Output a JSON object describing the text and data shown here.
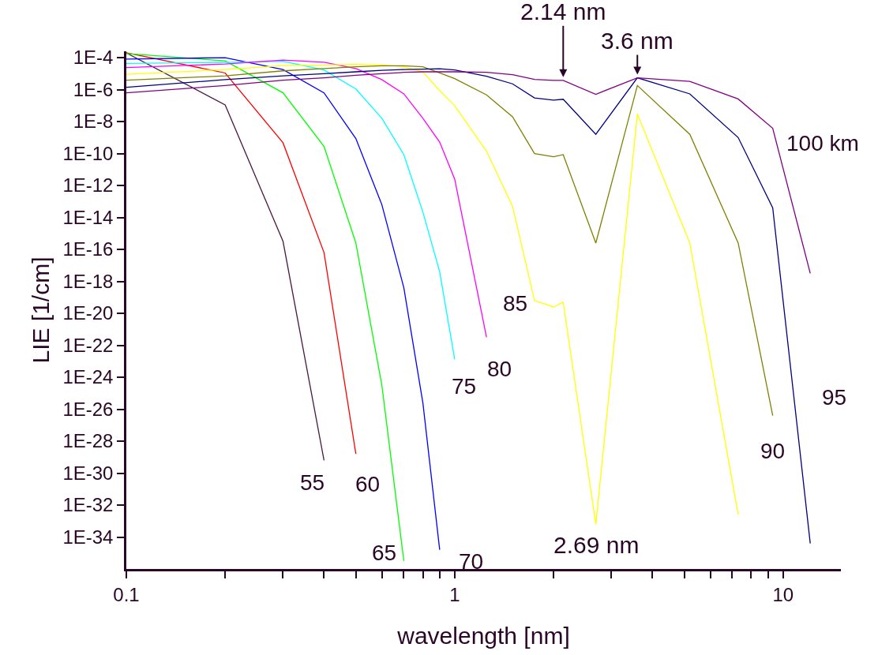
{
  "chart_data": {
    "type": "line",
    "xlabel": "wavelength [nm]",
    "ylabel": "LIE [1/cm]",
    "log": "xy",
    "grid": false,
    "legend": false,
    "marker": "none",
    "line_style": "solid",
    "xlim": [
      0.1,
      15
    ],
    "ylim": [
      1e-36,
      0.00025
    ],
    "xticks": [
      0.1,
      {
        "value": 0.2,
        "label": null
      },
      {
        "value": 0.3,
        "label": null
      },
      {
        "value": 0.4,
        "label": null
      },
      {
        "value": 0.5,
        "label": null
      },
      {
        "value": 0.6,
        "label": null
      },
      {
        "value": 0.7,
        "label": null
      },
      {
        "value": 0.8,
        "label": null
      },
      {
        "value": 0.9,
        "label": null
      },
      1,
      {
        "value": 2,
        "label": null
      },
      {
        "value": 3,
        "label": null
      },
      {
        "value": 4,
        "label": null
      },
      {
        "value": 5,
        "label": null
      },
      {
        "value": 6,
        "label": null
      },
      {
        "value": 7,
        "label": null
      },
      {
        "value": 8,
        "label": null
      },
      {
        "value": 9,
        "label": null
      },
      10
    ],
    "yticks": [
      {
        "value": 0.0001,
        "label": "1E-4"
      },
      {
        "value": 1e-06,
        "label": "1E-6"
      },
      {
        "value": 1e-08,
        "label": "1E-8"
      },
      {
        "value": 1e-10,
        "label": "1E-10"
      },
      {
        "value": 1e-12,
        "label": "1E-12"
      },
      {
        "value": 1e-14,
        "label": "1E-14"
      },
      {
        "value": 1e-16,
        "label": "1E-16"
      },
      {
        "value": 1e-18,
        "label": "1E-18"
      },
      {
        "value": 1e-20,
        "label": "1E-20"
      },
      {
        "value": 1e-22,
        "label": "1E-22"
      },
      {
        "value": 1e-24,
        "label": "1E-24"
      },
      {
        "value": 1e-26,
        "label": "1E-26"
      },
      {
        "value": 1e-28,
        "label": "1E-28"
      },
      {
        "value": 1e-30,
        "label": "1E-30"
      },
      {
        "value": 1e-32,
        "label": "1E-32"
      },
      {
        "value": 1e-34,
        "label": "1E-34"
      }
    ],
    "series": [
      {
        "name": "55",
        "color": "#4a1942",
        "x": [
          0.1,
          0.2,
          0.3,
          0.4
        ],
        "values": [
          0.0002,
          1.1e-07,
          3.2e-16,
          6.3e-30
        ]
      },
      {
        "name": "60",
        "color": "#ff0000",
        "x": [
          0.1,
          0.2,
          0.3,
          0.4,
          0.5
        ],
        "values": [
          0.0002,
          1.1e-05,
          4.7e-10,
          6.3e-17,
          1.6e-29
        ]
      },
      {
        "name": "65",
        "color": "#00ff00",
        "x": [
          0.1,
          0.2,
          0.3,
          0.4,
          0.5,
          0.6,
          0.7
        ],
        "values": [
          0.00018,
          6.3e-05,
          6.3e-07,
          2.8e-10,
          2.5e-16,
          3.2e-25,
          3.2e-36
        ]
      },
      {
        "name": "70",
        "color": "#0000ff",
        "x": [
          0.1,
          0.2,
          0.3,
          0.4,
          0.5,
          0.6,
          0.7,
          0.8,
          0.9
        ],
        "values": [
          8.1e-05,
          0.0001,
          1.8e-05,
          6.3e-07,
          8.7e-10,
          6.3e-14,
          4e-19,
          2.5e-26,
          1.6e-35
        ]
      },
      {
        "name": "75",
        "color": "#00ffff",
        "x": [
          0.1,
          0.2,
          0.3,
          0.4,
          0.5,
          0.6,
          0.7,
          0.8,
          0.9,
          1.0
        ],
        "values": [
          4.4e-05,
          5e-05,
          5.9e-05,
          1.7e-05,
          1.1e-06,
          1.6e-08,
          8.5e-11,
          2.2e-14,
          4e-18,
          1.3e-23
        ]
      },
      {
        "name": "80",
        "color": "#ff00ff",
        "x": [
          0.1,
          0.2,
          0.3,
          0.4,
          0.5,
          0.6,
          0.7,
          0.8,
          0.9,
          1.0,
          1.25
        ],
        "values": [
          2.4e-05,
          4e-05,
          7.1e-05,
          5.2e-05,
          2.1e-05,
          4.2e-06,
          5.4e-07,
          1.6e-08,
          5.2e-10,
          2.5e-12,
          3.2e-22
        ]
      },
      {
        "name": "85",
        "color": "#ffff00",
        "x": [
          0.1,
          0.2,
          0.3,
          0.4,
          0.5,
          0.6,
          0.7,
          0.8,
          0.9,
          1.0,
          1.25,
          1.5,
          1.75,
          2.0,
          2.14,
          2.69,
          3.6,
          5.2,
          7.3
        ],
        "values": [
          9.1e-06,
          1.8e-05,
          3.2e-05,
          3.5e-05,
          3.8e-05,
          3.5e-05,
          2.7e-05,
          1.3e-05,
          8.7e-07,
          1e-07,
          1.4e-10,
          5e-14,
          6.3e-20,
          2.5e-20,
          5e-20,
          6.3e-34,
          3e-08,
          2.5e-16,
          2.5e-33
        ]
      },
      {
        "name": "90",
        "color": "#808000",
        "x": [
          0.1,
          0.2,
          0.3,
          0.4,
          0.5,
          0.6,
          0.7,
          0.8,
          0.9,
          1.0,
          1.25,
          1.5,
          1.75,
          2.0,
          2.14,
          2.69,
          3.6,
          5.2,
          7.3,
          9.3
        ],
        "values": [
          3.9e-06,
          7.2e-06,
          1.5e-05,
          2.1e-05,
          2.7e-05,
          3.1e-05,
          3.1e-05,
          2.7e-05,
          1.1e-05,
          4.9e-06,
          4.7e-07,
          2e-08,
          1e-10,
          6.3e-11,
          8.5e-11,
          2.5e-16,
          1.8e-06,
          1.6e-09,
          2.5e-16,
          4e-27
        ]
      },
      {
        "name": "95",
        "color": "#000080",
        "x": [
          0.1,
          0.2,
          0.3,
          0.4,
          0.5,
          0.6,
          0.7,
          0.8,
          0.9,
          1.0,
          1.25,
          1.5,
          1.75,
          2.0,
          2.14,
          2.69,
          3.6,
          5.2,
          7.3,
          9.3,
          12.1
        ],
        "values": [
          1.4e-06,
          4.2e-06,
          7.2e-06,
          1e-05,
          1.3e-05,
          1.6e-05,
          1.8e-05,
          1.9e-05,
          2e-05,
          1.7e-05,
          6.8e-06,
          2.3e-06,
          3e-07,
          2.2e-07,
          2.5e-07,
          1.6e-09,
          5.5e-06,
          5.4e-07,
          1e-09,
          4e-14,
          4e-35
        ]
      },
      {
        "name": "100 km",
        "color": "#800080",
        "x": [
          0.1,
          0.2,
          0.3,
          0.4,
          0.5,
          0.6,
          0.7,
          0.8,
          0.9,
          1.0,
          1.25,
          1.5,
          1.75,
          2.0,
          2.14,
          2.69,
          3.6,
          5.2,
          7.3,
          9.3,
          12.1
        ],
        "values": [
          6.3e-07,
          1.8e-06,
          3.9e-06,
          5.5e-06,
          7.9e-06,
          1e-05,
          1.2e-05,
          1.3e-05,
          1.3e-05,
          1.3e-05,
          1.2e-05,
          8.7e-06,
          4.4e-06,
          3.8e-06,
          3.8e-06,
          5.1e-07,
          5.5e-06,
          3.3e-06,
          2.6e-07,
          3.8e-09,
          3.2e-18
        ]
      }
    ],
    "annotations": [
      {
        "text": "2.14 nm",
        "x": 2.14,
        "y": 3.8e-06
      },
      {
        "text": "3.6 nm",
        "x": 3.6,
        "y": 5.5e-06
      },
      {
        "text": "2.69 nm",
        "x": 2.69,
        "y": 6.3e-34
      }
    ]
  }
}
